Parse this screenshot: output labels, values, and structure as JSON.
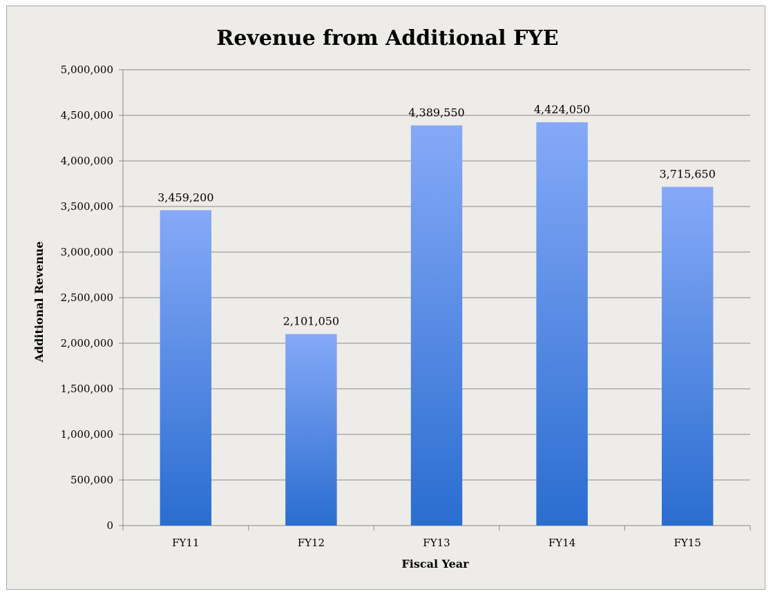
{
  "chart_data": {
    "type": "bar",
    "title": "Revenue from Additional FYE",
    "xlabel": "Fiscal Year",
    "ylabel": "Additional Revenue",
    "categories": [
      "FY11",
      "FY12",
      "FY13",
      "FY14",
      "FY15"
    ],
    "values": [
      3459200,
      2101050,
      4389550,
      4424050,
      3715650
    ],
    "value_labels": [
      "3,459,200",
      "2,101,050",
      "4,389,550",
      "4,424,050",
      "3,715,650"
    ],
    "ylim": [
      0,
      5000000
    ],
    "yticks": [
      0,
      500000,
      1000000,
      1500000,
      2000000,
      2500000,
      3000000,
      3500000,
      4000000,
      4500000,
      5000000
    ],
    "ytick_labels": [
      "0",
      "500,000",
      "1,000,000",
      "1,500,000",
      "2,000,000",
      "2,500,000",
      "3,000,000",
      "3,500,000",
      "4,000,000",
      "4,500,000",
      "5,000,000"
    ],
    "grid": true,
    "legend": "none",
    "colors": {
      "bar_top": "#86a9f8",
      "bar_bottom": "#2a6dd0",
      "grid": "#8a8784",
      "background": "#eeece9"
    }
  }
}
